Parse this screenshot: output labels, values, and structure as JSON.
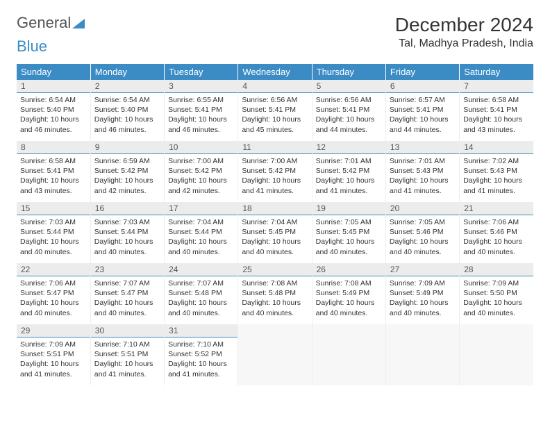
{
  "logo": {
    "text1": "General",
    "text2": "Blue"
  },
  "title": "December 2024",
  "location": "Tal, Madhya Pradesh, India",
  "colors": {
    "header_bg": "#3b8bc4",
    "daynum_bg": "#ececec",
    "day_border": "#3b8bc4"
  },
  "weekdays": [
    "Sunday",
    "Monday",
    "Tuesday",
    "Wednesday",
    "Thursday",
    "Friday",
    "Saturday"
  ],
  "weeks": [
    [
      {
        "n": "1",
        "sr": "6:54 AM",
        "ss": "5:40 PM",
        "dl": "10 hours and 46 minutes."
      },
      {
        "n": "2",
        "sr": "6:54 AM",
        "ss": "5:40 PM",
        "dl": "10 hours and 46 minutes."
      },
      {
        "n": "3",
        "sr": "6:55 AM",
        "ss": "5:41 PM",
        "dl": "10 hours and 46 minutes."
      },
      {
        "n": "4",
        "sr": "6:56 AM",
        "ss": "5:41 PM",
        "dl": "10 hours and 45 minutes."
      },
      {
        "n": "5",
        "sr": "6:56 AM",
        "ss": "5:41 PM",
        "dl": "10 hours and 44 minutes."
      },
      {
        "n": "6",
        "sr": "6:57 AM",
        "ss": "5:41 PM",
        "dl": "10 hours and 44 minutes."
      },
      {
        "n": "7",
        "sr": "6:58 AM",
        "ss": "5:41 PM",
        "dl": "10 hours and 43 minutes."
      }
    ],
    [
      {
        "n": "8",
        "sr": "6:58 AM",
        "ss": "5:41 PM",
        "dl": "10 hours and 43 minutes."
      },
      {
        "n": "9",
        "sr": "6:59 AM",
        "ss": "5:42 PM",
        "dl": "10 hours and 42 minutes."
      },
      {
        "n": "10",
        "sr": "7:00 AM",
        "ss": "5:42 PM",
        "dl": "10 hours and 42 minutes."
      },
      {
        "n": "11",
        "sr": "7:00 AM",
        "ss": "5:42 PM",
        "dl": "10 hours and 41 minutes."
      },
      {
        "n": "12",
        "sr": "7:01 AM",
        "ss": "5:42 PM",
        "dl": "10 hours and 41 minutes."
      },
      {
        "n": "13",
        "sr": "7:01 AM",
        "ss": "5:43 PM",
        "dl": "10 hours and 41 minutes."
      },
      {
        "n": "14",
        "sr": "7:02 AM",
        "ss": "5:43 PM",
        "dl": "10 hours and 41 minutes."
      }
    ],
    [
      {
        "n": "15",
        "sr": "7:03 AM",
        "ss": "5:44 PM",
        "dl": "10 hours and 40 minutes."
      },
      {
        "n": "16",
        "sr": "7:03 AM",
        "ss": "5:44 PM",
        "dl": "10 hours and 40 minutes."
      },
      {
        "n": "17",
        "sr": "7:04 AM",
        "ss": "5:44 PM",
        "dl": "10 hours and 40 minutes."
      },
      {
        "n": "18",
        "sr": "7:04 AM",
        "ss": "5:45 PM",
        "dl": "10 hours and 40 minutes."
      },
      {
        "n": "19",
        "sr": "7:05 AM",
        "ss": "5:45 PM",
        "dl": "10 hours and 40 minutes."
      },
      {
        "n": "20",
        "sr": "7:05 AM",
        "ss": "5:46 PM",
        "dl": "10 hours and 40 minutes."
      },
      {
        "n": "21",
        "sr": "7:06 AM",
        "ss": "5:46 PM",
        "dl": "10 hours and 40 minutes."
      }
    ],
    [
      {
        "n": "22",
        "sr": "7:06 AM",
        "ss": "5:47 PM",
        "dl": "10 hours and 40 minutes."
      },
      {
        "n": "23",
        "sr": "7:07 AM",
        "ss": "5:47 PM",
        "dl": "10 hours and 40 minutes."
      },
      {
        "n": "24",
        "sr": "7:07 AM",
        "ss": "5:48 PM",
        "dl": "10 hours and 40 minutes."
      },
      {
        "n": "25",
        "sr": "7:08 AM",
        "ss": "5:48 PM",
        "dl": "10 hours and 40 minutes."
      },
      {
        "n": "26",
        "sr": "7:08 AM",
        "ss": "5:49 PM",
        "dl": "10 hours and 40 minutes."
      },
      {
        "n": "27",
        "sr": "7:09 AM",
        "ss": "5:49 PM",
        "dl": "10 hours and 40 minutes."
      },
      {
        "n": "28",
        "sr": "7:09 AM",
        "ss": "5:50 PM",
        "dl": "10 hours and 40 minutes."
      }
    ],
    [
      {
        "n": "29",
        "sr": "7:09 AM",
        "ss": "5:51 PM",
        "dl": "10 hours and 41 minutes."
      },
      {
        "n": "30",
        "sr": "7:10 AM",
        "ss": "5:51 PM",
        "dl": "10 hours and 41 minutes."
      },
      {
        "n": "31",
        "sr": "7:10 AM",
        "ss": "5:52 PM",
        "dl": "10 hours and 41 minutes."
      },
      null,
      null,
      null,
      null
    ]
  ],
  "labels": {
    "sunrise": "Sunrise: ",
    "sunset": "Sunset: ",
    "daylight": "Daylight: "
  }
}
